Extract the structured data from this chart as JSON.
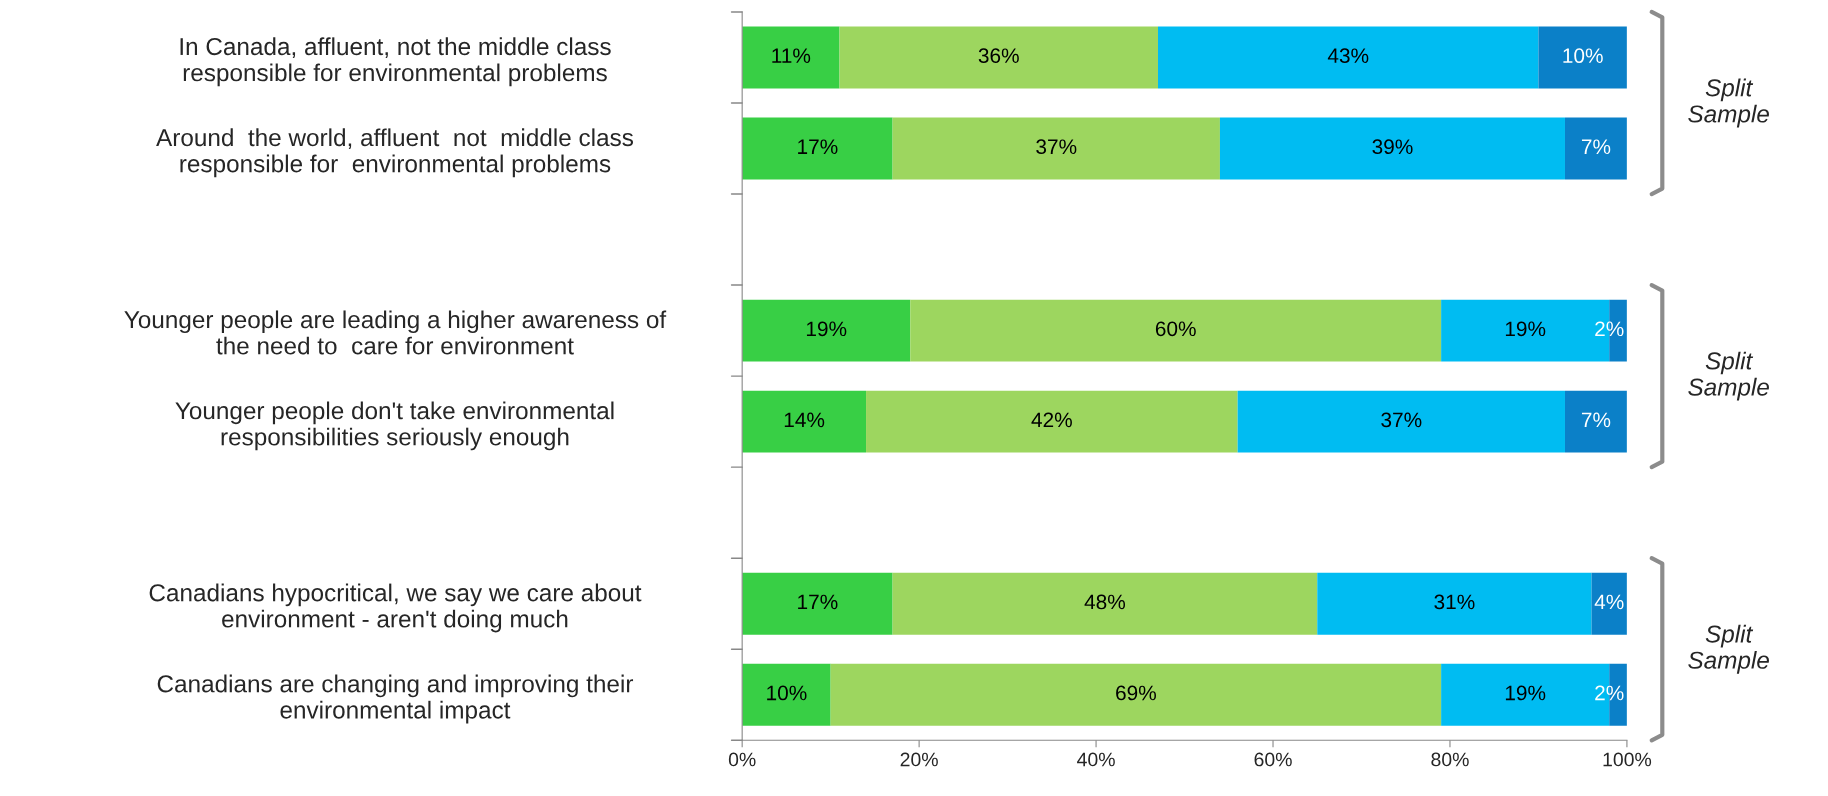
{
  "chart_data": {
    "type": "bar",
    "orientation": "horizontal",
    "stacked": true,
    "grid": false,
    "legend": false,
    "categories": [
      "In Canada, affluent, not the middle class\nresponsible for environmental problems",
      "Around  the world, affluent  not  middle class\nresponsible for  environmental problems",
      null,
      "Younger people are leading a higher awareness of\nthe need to  care for environment",
      "Younger people don't take environmental\nresponsibilities seriously enough",
      null,
      "Canadians hypocritical, we say we care about\nenvironment - aren't doing much",
      "Canadians are changing and improving their\nenvironmental impact"
    ],
    "series": [
      {
        "color": "#38cf45",
        "values": [
          11,
          17,
          null,
          19,
          14,
          null,
          17,
          10
        ],
        "value_labels": [
          "11%",
          "17%",
          null,
          "19%",
          "14%",
          null,
          "17%",
          "10%"
        ]
      },
      {
        "color": "#9dd65f",
        "values": [
          36,
          37,
          null,
          60,
          42,
          null,
          48,
          69
        ],
        "value_labels": [
          "36%",
          "37%",
          null,
          "60%",
          "42%",
          null,
          "48%",
          "69%"
        ]
      },
      {
        "color": "#00bcf2",
        "values": [
          43,
          39,
          null,
          19,
          37,
          null,
          31,
          19
        ],
        "value_labels": [
          "43%",
          "39%",
          null,
          "19%",
          "37%",
          null,
          "31%",
          "19%"
        ]
      },
      {
        "color": "#0b80c8",
        "values": [
          10,
          7,
          null,
          2,
          7,
          null,
          4,
          2
        ],
        "value_labels": [
          "10%",
          "7%",
          null,
          "2%",
          "7%",
          null,
          "4%",
          "2%"
        ]
      }
    ],
    "xlim": [
      0,
      100
    ],
    "xticks": [
      {
        "value": 0,
        "label": "0%"
      },
      {
        "value": 20,
        "label": "20%"
      },
      {
        "value": 40,
        "label": "40%"
      },
      {
        "value": 60,
        "label": "60%"
      },
      {
        "value": 80,
        "label": "80%"
      },
      {
        "value": 100,
        "label": "100%"
      }
    ],
    "annotations": [
      "Split\nSample",
      "Split\nSample",
      "Split\nSample"
    ]
  }
}
